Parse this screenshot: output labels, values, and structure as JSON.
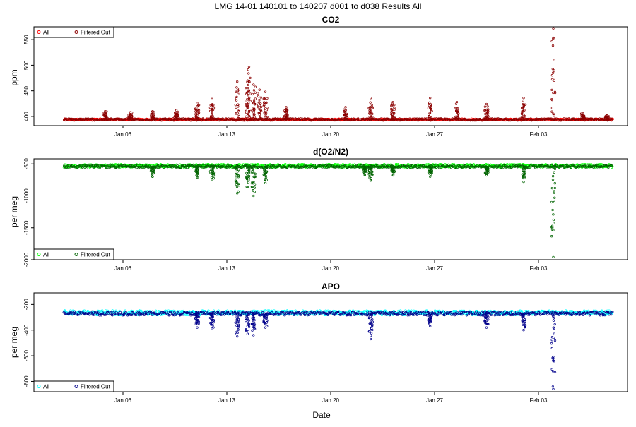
{
  "figure": {
    "title": "LMG   14-01    140101 to 140207    d001 to d038   Results All",
    "xlabel": "Date"
  },
  "chart_data": [
    {
      "type": "scatter",
      "title": "CO2",
      "ylabel": "ppm",
      "xlim": [
        "2013-12-31",
        "2014-02-09"
      ],
      "ylim": [
        382,
        575
      ],
      "xticks": [
        {
          "date": "2014-01-06",
          "label": "Jan 06"
        },
        {
          "date": "2014-01-13",
          "label": "Jan 13"
        },
        {
          "date": "2014-01-20",
          "label": "Jan 20"
        },
        {
          "date": "2014-01-27",
          "label": "Jan 27"
        },
        {
          "date": "2014-02-03",
          "label": "Feb 03"
        }
      ],
      "yticks": [
        400,
        450,
        500,
        550
      ],
      "legend_position": "top-left",
      "grid": false,
      "series": [
        {
          "name": "All",
          "color": "#ff0000",
          "x_range": [
            "2014-01-02",
            "2014-02-08"
          ],
          "baseline": 394,
          "spread": 1.5
        },
        {
          "name": "Filtered Out",
          "color": "#8b0000",
          "x_range": [
            "2014-01-02",
            "2014-02-08"
          ],
          "baseline": 394,
          "spread": 2,
          "spikes": [
            {
              "date": "2014-01-04.8",
              "peak": 410
            },
            {
              "date": "2014-01-06.5",
              "peak": 408
            },
            {
              "date": "2014-01-08.0",
              "peak": 410
            },
            {
              "date": "2014-01-09.6",
              "peak": 412
            },
            {
              "date": "2014-01-11.0",
              "peak": 426
            },
            {
              "date": "2014-01-12.0",
              "peak": 434
            },
            {
              "date": "2014-01-13.7",
              "peak": 468
            },
            {
              "date": "2014-01-14.4",
              "peak": 470
            },
            {
              "date": "2014-01-14.5",
              "peak": 497
            },
            {
              "date": "2014-01-14.8",
              "peak": 462
            },
            {
              "date": "2014-01-15.2",
              "peak": 452
            },
            {
              "date": "2014-01-15.6",
              "peak": 448
            },
            {
              "date": "2014-01-17.0",
              "peak": 418
            },
            {
              "date": "2014-01-21.0",
              "peak": 418
            },
            {
              "date": "2014-01-22.7",
              "peak": 436
            },
            {
              "date": "2014-01-24.2",
              "peak": 428
            },
            {
              "date": "2014-01-26.7",
              "peak": 436
            },
            {
              "date": "2014-01-28.5",
              "peak": 428
            },
            {
              "date": "2014-01-30.5",
              "peak": 424
            },
            {
              "date": "2014-02-02.0",
              "peak": 436
            },
            {
              "date": "2014-02-04.0",
              "peak": 572
            },
            {
              "date": "2014-02-06.0",
              "peak": 406
            },
            {
              "date": "2014-02-07.6",
              "peak": 402
            }
          ]
        }
      ]
    },
    {
      "type": "scatter",
      "title": "d(O2/N2)",
      "ylabel": "per meg",
      "xlim": [
        "2013-12-31",
        "2014-02-09"
      ],
      "ylim": [
        -2000,
        -420
      ],
      "xticks": [
        {
          "date": "2014-01-06",
          "label": "Jan 06"
        },
        {
          "date": "2014-01-13",
          "label": "Jan 13"
        },
        {
          "date": "2014-01-20",
          "label": "Jan 20"
        },
        {
          "date": "2014-01-27",
          "label": "Jan 27"
        },
        {
          "date": "2014-02-03",
          "label": "Feb 03"
        }
      ],
      "yticks": [
        -2000,
        -1500,
        -1000,
        -500
      ],
      "legend_position": "bottom-left",
      "grid": false,
      "series": [
        {
          "name": "All",
          "color": "#00ff00",
          "x_range": [
            "2014-01-02",
            "2014-02-08"
          ],
          "baseline": -530,
          "spread": 25
        },
        {
          "name": "Filtered Out",
          "color": "#006400",
          "x_range": [
            "2014-01-02",
            "2014-02-08"
          ],
          "baseline": -540,
          "spread": 20,
          "spikes": [
            {
              "date": "2014-01-08.0",
              "peak": -700
            },
            {
              "date": "2014-01-11.0",
              "peak": -720
            },
            {
              "date": "2014-01-12.0",
              "peak": -740
            },
            {
              "date": "2014-01-13.7",
              "peak": -960
            },
            {
              "date": "2014-01-14.4",
              "peak": -860
            },
            {
              "date": "2014-01-14.8",
              "peak": -1000
            },
            {
              "date": "2014-01-15.6",
              "peak": -800
            },
            {
              "date": "2014-01-22.3",
              "peak": -680
            },
            {
              "date": "2014-01-22.7",
              "peak": -760
            },
            {
              "date": "2014-01-24.2",
              "peak": -680
            },
            {
              "date": "2014-01-26.7",
              "peak": -700
            },
            {
              "date": "2014-01-30.5",
              "peak": -680
            },
            {
              "date": "2014-02-02.0",
              "peak": -780
            },
            {
              "date": "2014-02-04.0",
              "peak": -1960
            }
          ]
        }
      ]
    },
    {
      "type": "scatter",
      "title": "APO",
      "ylabel": "per meg",
      "xlim": [
        "2013-12-31",
        "2014-02-09"
      ],
      "ylim": [
        -880,
        -110
      ],
      "xticks": [
        {
          "date": "2014-01-06",
          "label": "Jan 06"
        },
        {
          "date": "2014-01-13",
          "label": "Jan 13"
        },
        {
          "date": "2014-01-20",
          "label": "Jan 20"
        },
        {
          "date": "2014-01-27",
          "label": "Jan 27"
        },
        {
          "date": "2014-02-03",
          "label": "Feb 03"
        }
      ],
      "yticks": [
        -800,
        -600,
        -400,
        -200
      ],
      "legend_position": "bottom-left",
      "grid": false,
      "series": [
        {
          "name": "All",
          "color": "#00ffff",
          "x_range": [
            "2014-01-02",
            "2014-02-08"
          ],
          "baseline": -265,
          "spread": 18
        },
        {
          "name": "Filtered Out",
          "color": "#00008b",
          "x_range": [
            "2014-01-02",
            "2014-02-08"
          ],
          "baseline": -270,
          "spread": 15,
          "spikes": [
            {
              "date": "2014-01-11.0",
              "peak": -380
            },
            {
              "date": "2014-01-12.0",
              "peak": -390
            },
            {
              "date": "2014-01-13.7",
              "peak": -450
            },
            {
              "date": "2014-01-14.4",
              "peak": -430
            },
            {
              "date": "2014-01-14.8",
              "peak": -440
            },
            {
              "date": "2014-01-15.6",
              "peak": -380
            },
            {
              "date": "2014-01-22.7",
              "peak": -470
            },
            {
              "date": "2014-01-26.7",
              "peak": -370
            },
            {
              "date": "2014-01-30.5",
              "peak": -380
            },
            {
              "date": "2014-02-02.0",
              "peak": -400
            },
            {
              "date": "2014-02-04.0",
              "peak": -860
            }
          ]
        }
      ]
    }
  ]
}
